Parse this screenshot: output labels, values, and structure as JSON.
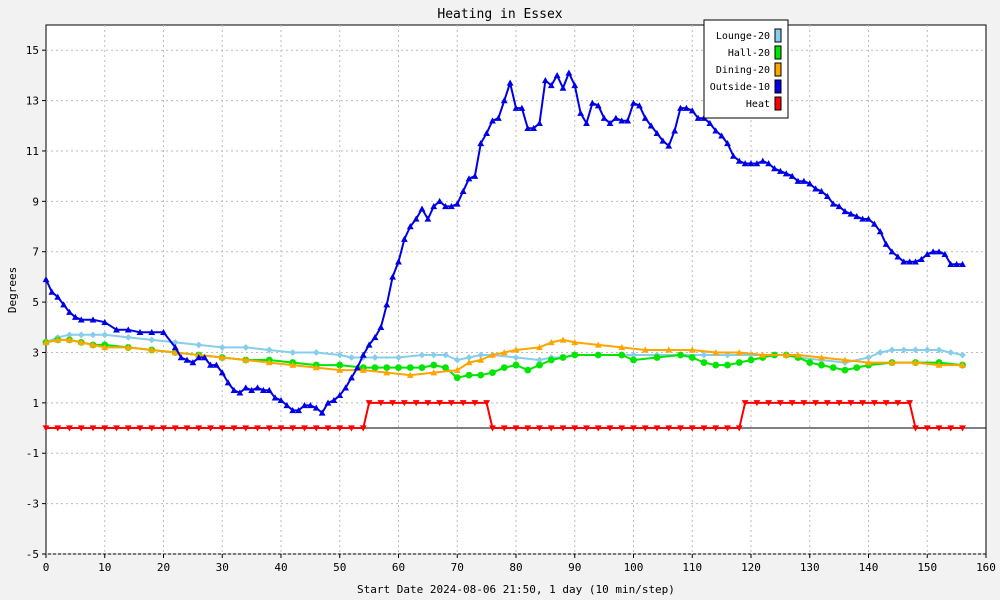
{
  "chart_data": {
    "type": "line",
    "title": "Heating in Essex",
    "xlabel": "Start Date 2024-08-06 21:50, 1 day (10 min/step)",
    "ylabel": "Degrees",
    "xlim": [
      0,
      160
    ],
    "ylim": [
      -5,
      16
    ],
    "x_ticks": [
      0,
      10,
      20,
      30,
      40,
      50,
      60,
      70,
      80,
      90,
      100,
      110,
      120,
      130,
      140,
      150,
      160
    ],
    "y_ticks": [
      -5,
      -3,
      -1,
      1,
      3,
      5,
      7,
      9,
      11,
      13,
      15
    ],
    "grid": true,
    "legend_position": "top-right",
    "zero_line": 0,
    "series": [
      {
        "name": "Lounge-20",
        "color": "#87ceeb",
        "marker": "diamond",
        "x": [
          0,
          2,
          4,
          6,
          8,
          10,
          14,
          18,
          22,
          26,
          30,
          34,
          38,
          42,
          46,
          50,
          52,
          54,
          56,
          60,
          64,
          66,
          68,
          70,
          72,
          74,
          76,
          80,
          84,
          86,
          88,
          90,
          94,
          98,
          100,
          104,
          108,
          112,
          116,
          120,
          124,
          126,
          128,
          132,
          136,
          140,
          142,
          144,
          146,
          148,
          150,
          152,
          154,
          156
        ],
        "y": [
          3.4,
          3.6,
          3.7,
          3.7,
          3.7,
          3.7,
          3.6,
          3.5,
          3.4,
          3.3,
          3.2,
          3.2,
          3.1,
          3.0,
          3.0,
          2.9,
          2.8,
          2.8,
          2.8,
          2.8,
          2.9,
          2.9,
          2.9,
          2.7,
          2.8,
          2.9,
          2.9,
          2.8,
          2.7,
          2.8,
          2.8,
          2.9,
          2.9,
          2.9,
          2.9,
          2.9,
          2.9,
          2.9,
          2.9,
          2.9,
          2.9,
          2.9,
          2.8,
          2.7,
          2.6,
          2.8,
          3.0,
          3.1,
          3.1,
          3.1,
          3.1,
          3.1,
          3.0,
          2.9
        ]
      },
      {
        "name": "Hall-20",
        "color": "#00e600",
        "marker": "circle",
        "x": [
          0,
          2,
          4,
          6,
          8,
          10,
          14,
          18,
          22,
          26,
          30,
          34,
          38,
          42,
          46,
          50,
          54,
          56,
          58,
          60,
          62,
          64,
          66,
          68,
          70,
          72,
          74,
          76,
          78,
          80,
          82,
          84,
          86,
          88,
          90,
          94,
          98,
          100,
          104,
          108,
          110,
          112,
          114,
          116,
          118,
          120,
          122,
          124,
          126,
          128,
          130,
          132,
          134,
          136,
          138,
          140,
          144,
          148,
          152,
          156
        ],
        "y": [
          3.4,
          3.5,
          3.5,
          3.4,
          3.3,
          3.3,
          3.2,
          3.1,
          3.0,
          2.9,
          2.8,
          2.7,
          2.7,
          2.6,
          2.5,
          2.5,
          2.4,
          2.4,
          2.4,
          2.4,
          2.4,
          2.4,
          2.5,
          2.4,
          2.0,
          2.1,
          2.1,
          2.2,
          2.4,
          2.5,
          2.3,
          2.5,
          2.7,
          2.8,
          2.9,
          2.9,
          2.9,
          2.7,
          2.8,
          2.9,
          2.8,
          2.6,
          2.5,
          2.5,
          2.6,
          2.7,
          2.8,
          2.9,
          2.9,
          2.8,
          2.6,
          2.5,
          2.4,
          2.3,
          2.4,
          2.5,
          2.6,
          2.6,
          2.6,
          2.5
        ]
      },
      {
        "name": "Dining-20",
        "color": "#ffa500",
        "marker": "triangle",
        "x": [
          0,
          2,
          4,
          6,
          8,
          10,
          14,
          18,
          22,
          26,
          30,
          34,
          38,
          42,
          46,
          50,
          54,
          58,
          62,
          66,
          70,
          72,
          74,
          76,
          78,
          80,
          84,
          86,
          88,
          90,
          94,
          98,
          102,
          106,
          110,
          114,
          118,
          122,
          126,
          128,
          132,
          136,
          140,
          144,
          148,
          152,
          156
        ],
        "y": [
          3.4,
          3.5,
          3.5,
          3.4,
          3.3,
          3.2,
          3.2,
          3.1,
          3.0,
          2.9,
          2.8,
          2.7,
          2.6,
          2.5,
          2.4,
          2.3,
          2.3,
          2.2,
          2.1,
          2.2,
          2.3,
          2.6,
          2.7,
          2.9,
          3.0,
          3.1,
          3.2,
          3.4,
          3.5,
          3.4,
          3.3,
          3.2,
          3.1,
          3.1,
          3.1,
          3.0,
          3.0,
          2.9,
          2.9,
          2.9,
          2.8,
          2.7,
          2.6,
          2.6,
          2.6,
          2.5,
          2.5
        ]
      },
      {
        "name": "Outside-10",
        "color": "#0000e6",
        "marker": "triangle",
        "x": [
          0,
          1,
          2,
          3,
          4,
          5,
          6,
          8,
          10,
          12,
          14,
          16,
          18,
          20,
          22,
          23,
          24,
          25,
          26,
          27,
          28,
          29,
          30,
          31,
          32,
          33,
          34,
          35,
          36,
          37,
          38,
          39,
          40,
          41,
          42,
          43,
          44,
          45,
          46,
          47,
          48,
          49,
          50,
          51,
          52,
          53,
          54,
          55,
          56,
          57,
          58,
          59,
          60,
          61,
          62,
          63,
          64,
          65,
          66,
          67,
          68,
          69,
          70,
          71,
          72,
          73,
          74,
          75,
          76,
          77,
          78,
          79,
          80,
          81,
          82,
          83,
          84,
          85,
          86,
          87,
          88,
          89,
          90,
          91,
          92,
          93,
          94,
          95,
          96,
          97,
          98,
          99,
          100,
          101,
          102,
          103,
          104,
          105,
          106,
          107,
          108,
          109,
          110,
          111,
          112,
          113,
          114,
          115,
          116,
          117,
          118,
          119,
          120,
          121,
          122,
          123,
          124,
          125,
          126,
          127,
          128,
          129,
          130,
          131,
          132,
          133,
          134,
          135,
          136,
          137,
          138,
          139,
          140,
          141,
          142,
          143,
          144,
          145,
          146,
          147,
          148,
          149,
          150,
          151,
          152,
          153,
          154,
          155,
          156
        ],
        "y": [
          5.9,
          5.4,
          5.2,
          4.9,
          4.6,
          4.4,
          4.3,
          4.3,
          4.2,
          3.9,
          3.9,
          3.8,
          3.8,
          3.8,
          3.2,
          2.8,
          2.7,
          2.6,
          2.8,
          2.8,
          2.5,
          2.5,
          2.2,
          1.8,
          1.5,
          1.4,
          1.6,
          1.5,
          1.6,
          1.5,
          1.5,
          1.2,
          1.1,
          0.9,
          0.7,
          0.7,
          0.9,
          0.9,
          0.8,
          0.6,
          1.0,
          1.1,
          1.3,
          1.6,
          2.0,
          2.4,
          2.9,
          3.3,
          3.6,
          4.0,
          4.9,
          6.0,
          6.6,
          7.5,
          8.0,
          8.3,
          8.7,
          8.3,
          8.8,
          9.0,
          8.8,
          8.8,
          8.9,
          9.4,
          9.9,
          10.0,
          11.3,
          11.7,
          12.2,
          12.3,
          13.0,
          13.7,
          12.7,
          12.7,
          11.9,
          11.9,
          12.1,
          13.8,
          13.6,
          14.0,
          13.5,
          14.1,
          13.6,
          12.5,
          12.1,
          12.9,
          12.8,
          12.3,
          12.1,
          12.3,
          12.2,
          12.2,
          12.9,
          12.8,
          12.3,
          12.0,
          11.7,
          11.4,
          11.2,
          11.8,
          12.7,
          12.7,
          12.6,
          12.3,
          12.3,
          12.1,
          11.8,
          11.6,
          11.3,
          10.8,
          10.6,
          10.5,
          10.5,
          10.5,
          10.6,
          10.5,
          10.3,
          10.2,
          10.1,
          10.0,
          9.8,
          9.8,
          9.7,
          9.5,
          9.4,
          9.2,
          8.9,
          8.8,
          8.6,
          8.5,
          8.4,
          8.3,
          8.3,
          8.1,
          7.8,
          7.3,
          7.0,
          6.8,
          6.6,
          6.6,
          6.6,
          6.7,
          6.9,
          7.0,
          7.0,
          6.9,
          6.5,
          6.5,
          6.5
        ]
      },
      {
        "name": "Heat",
        "color": "#ff0000",
        "marker": "triangle-down",
        "x": [
          0,
          2,
          4,
          6,
          8,
          10,
          12,
          14,
          16,
          18,
          20,
          22,
          24,
          26,
          28,
          30,
          32,
          34,
          36,
          38,
          40,
          42,
          44,
          46,
          48,
          50,
          52,
          54,
          55,
          57,
          59,
          61,
          63,
          65,
          67,
          69,
          71,
          73,
          75,
          76,
          78,
          80,
          82,
          84,
          86,
          88,
          90,
          92,
          94,
          96,
          98,
          100,
          102,
          104,
          106,
          108,
          110,
          112,
          114,
          116,
          118,
          119,
          121,
          123,
          125,
          127,
          129,
          131,
          133,
          135,
          137,
          139,
          141,
          143,
          145,
          147,
          148,
          150,
          152,
          154,
          156
        ],
        "y": [
          0,
          0,
          0,
          0,
          0,
          0,
          0,
          0,
          0,
          0,
          0,
          0,
          0,
          0,
          0,
          0,
          0,
          0,
          0,
          0,
          0,
          0,
          0,
          0,
          0,
          0,
          0,
          0,
          1,
          1,
          1,
          1,
          1,
          1,
          1,
          1,
          1,
          1,
          1,
          0,
          0,
          0,
          0,
          0,
          0,
          0,
          0,
          0,
          0,
          0,
          0,
          0,
          0,
          0,
          0,
          0,
          0,
          0,
          0,
          0,
          0,
          1,
          1,
          1,
          1,
          1,
          1,
          1,
          1,
          1,
          1,
          1,
          1,
          1,
          1,
          1,
          0,
          0,
          0,
          0,
          0
        ]
      }
    ]
  }
}
